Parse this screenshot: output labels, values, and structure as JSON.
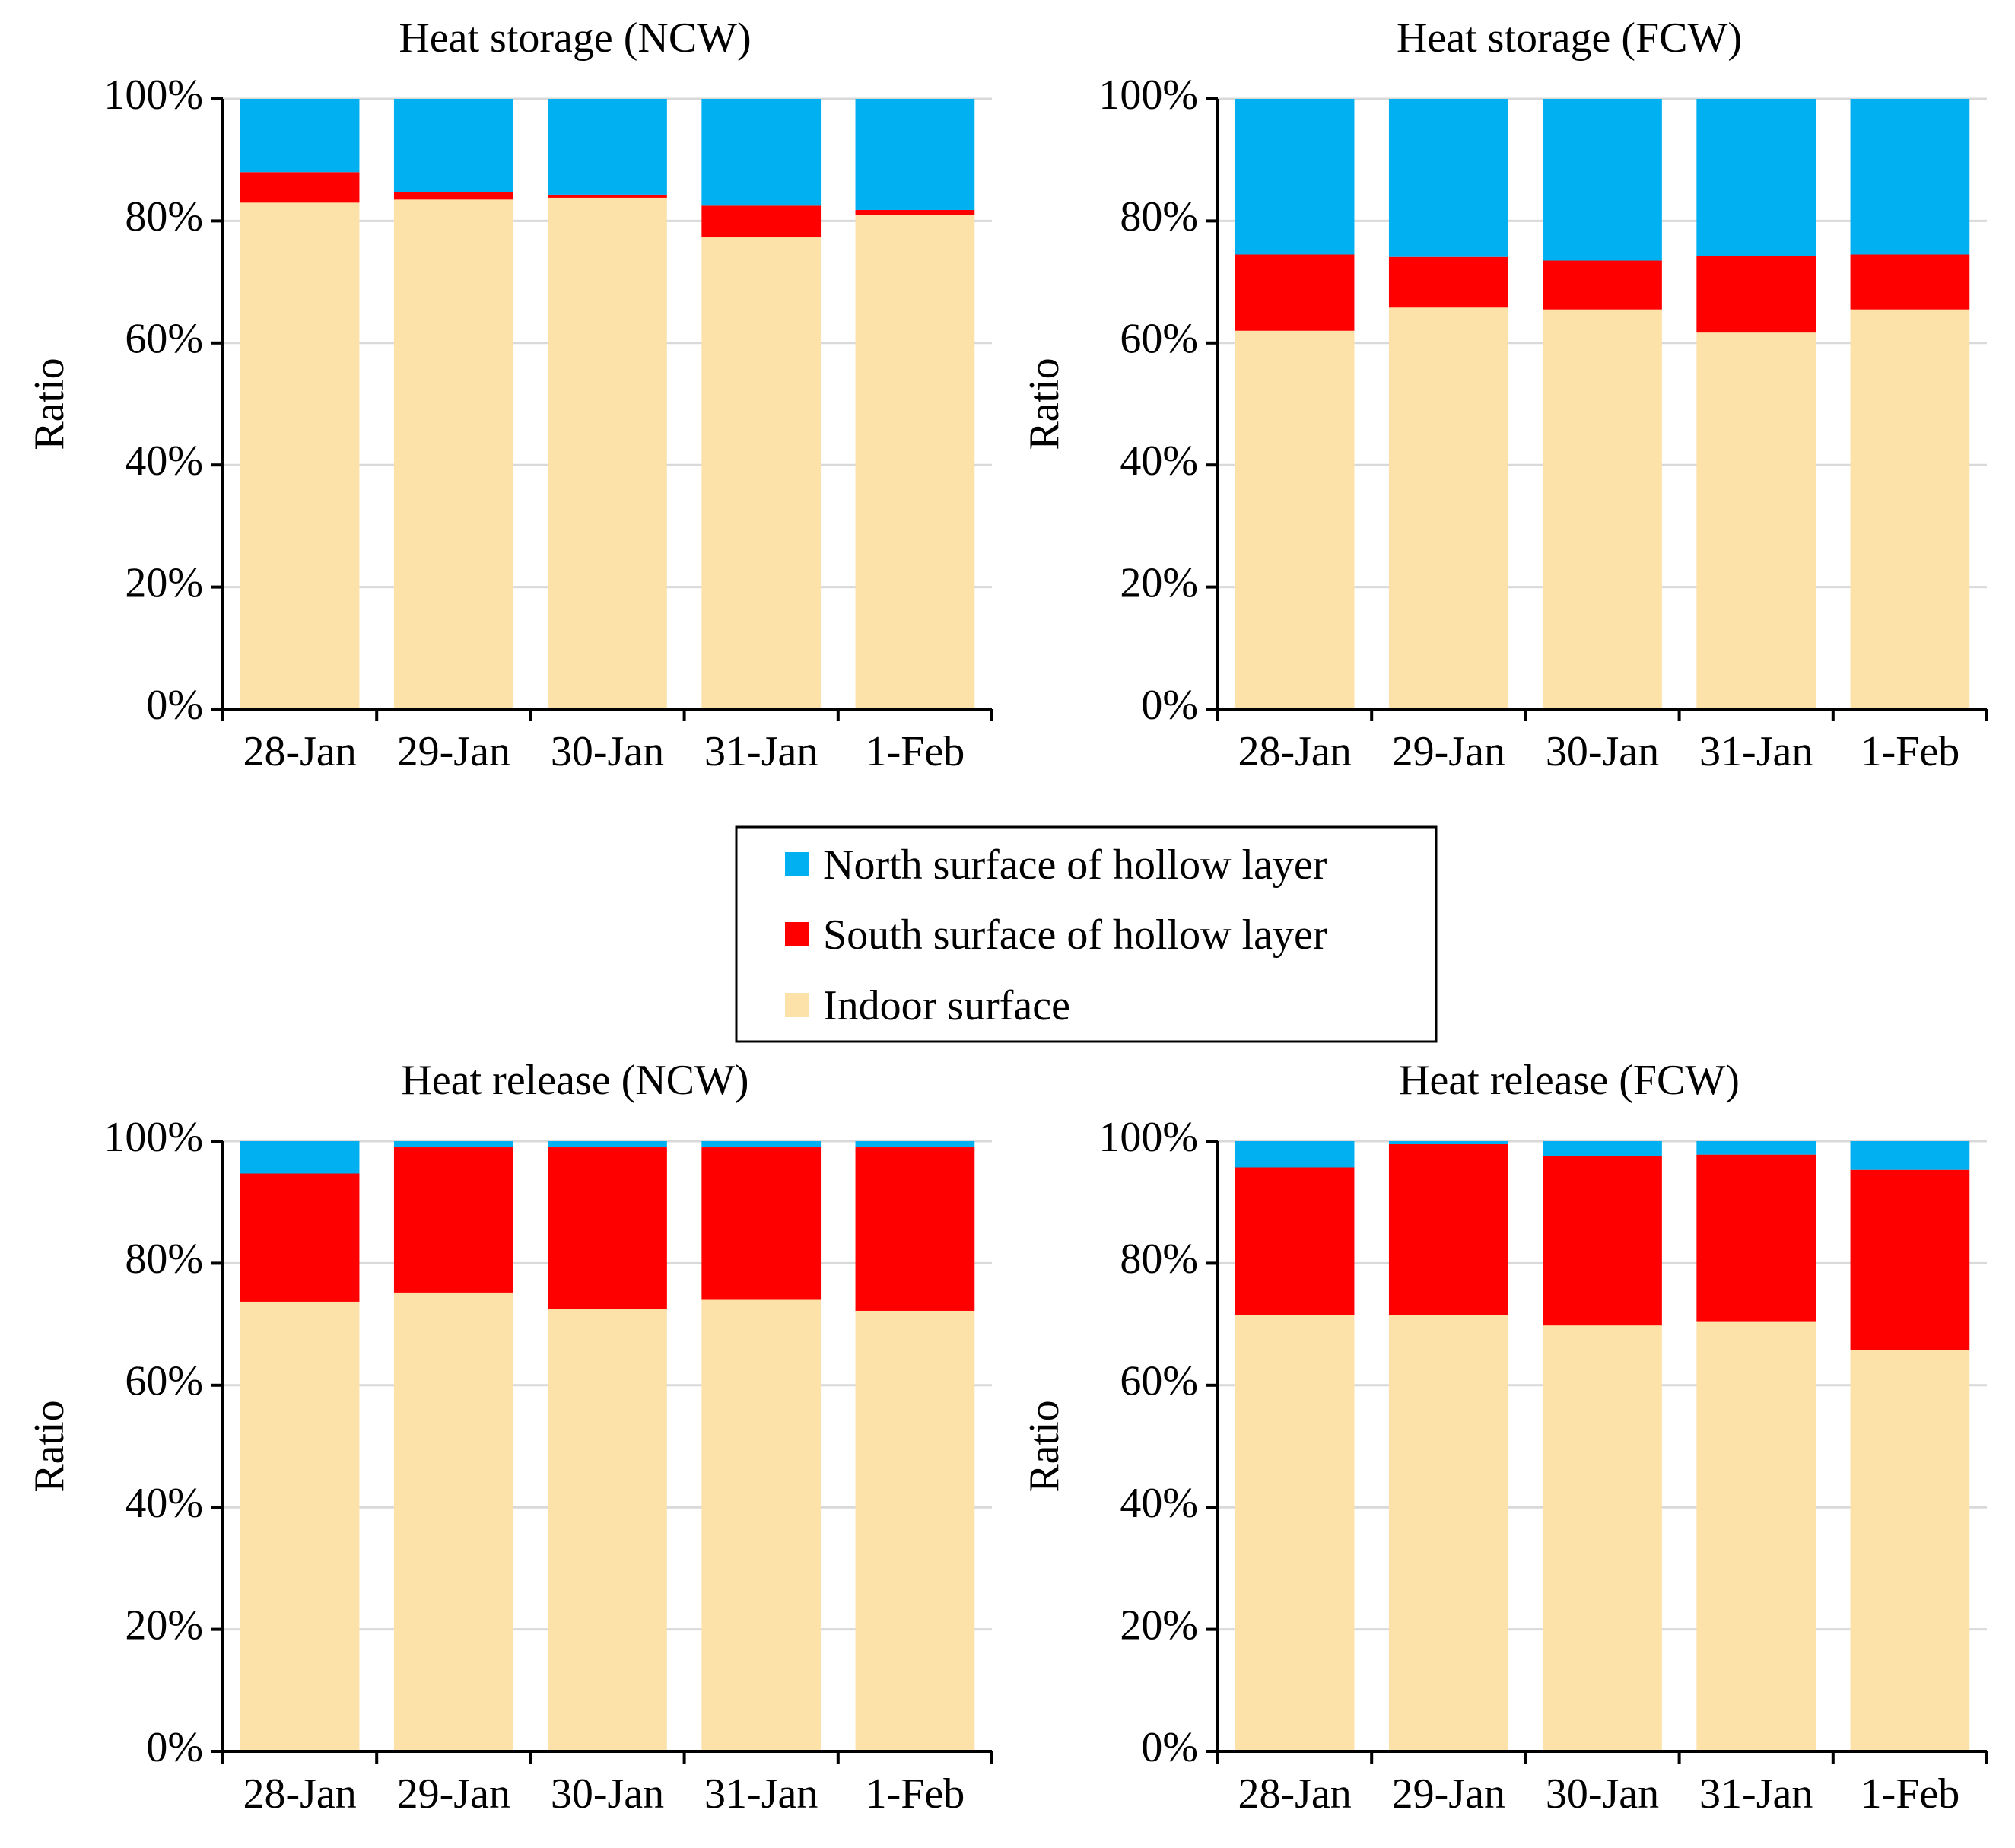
{
  "colors": {
    "indoor": "#FCE2A9",
    "south": "#FF0000",
    "north": "#00B0F0",
    "grid": "#D9D9D9",
    "axis": "#000000"
  },
  "legend": {
    "items": [
      {
        "label": "North surface of hollow layer",
        "color": "#00B0F0"
      },
      {
        "label": "South surface of hollow layer",
        "color": "#FF0000"
      },
      {
        "label": "Indoor surface",
        "color": "#FCE2A9"
      }
    ]
  },
  "chart_data": [
    {
      "type": "bar",
      "stacked": true,
      "title": "Heat storage (NCW)",
      "xlabel": "",
      "ylabel": "Ratio",
      "ylim": [
        0,
        100
      ],
      "yticks": [
        "0%",
        "20%",
        "40%",
        "60%",
        "80%",
        "100%"
      ],
      "grid": true,
      "categories": [
        "28-Jan",
        "29-Jan",
        "30-Jan",
        "31-Jan",
        "1-Feb"
      ],
      "series": [
        {
          "name": "Indoor surface",
          "values": [
            83.0,
            83.5,
            83.8,
            77.3,
            81.0
          ]
        },
        {
          "name": "South surface of hollow layer",
          "values": [
            5.0,
            1.2,
            0.5,
            5.2,
            0.8
          ]
        },
        {
          "name": "North surface of hollow layer",
          "values": [
            12.0,
            15.3,
            15.7,
            17.5,
            18.2
          ]
        }
      ]
    },
    {
      "type": "bar",
      "stacked": true,
      "title": "Heat storage (FCW)",
      "xlabel": "",
      "ylabel": "Ratio",
      "ylim": [
        0,
        100
      ],
      "yticks": [
        "0%",
        "20%",
        "40%",
        "60%",
        "80%",
        "100%"
      ],
      "grid": true,
      "categories": [
        "28-Jan",
        "29-Jan",
        "30-Jan",
        "31-Jan",
        "1-Feb"
      ],
      "series": [
        {
          "name": "Indoor surface",
          "values": [
            62.0,
            65.8,
            65.5,
            61.7,
            65.5
          ]
        },
        {
          "name": "South surface of hollow layer",
          "values": [
            12.5,
            8.3,
            8.0,
            12.5,
            9.0
          ]
        },
        {
          "name": "North surface of hollow layer",
          "values": [
            25.5,
            25.9,
            26.5,
            25.8,
            25.5
          ]
        }
      ]
    },
    {
      "type": "bar",
      "stacked": true,
      "title": "Heat release (NCW)",
      "xlabel": "",
      "ylabel": "Ratio",
      "ylim": [
        0,
        100
      ],
      "yticks": [
        "0%",
        "20%",
        "40%",
        "60%",
        "80%",
        "100%"
      ],
      "grid": true,
      "categories": [
        "28-Jan",
        "29-Jan",
        "30-Jan",
        "31-Jan",
        "1-Feb"
      ],
      "series": [
        {
          "name": "Indoor surface",
          "values": [
            73.7,
            75.2,
            72.5,
            74.0,
            72.2
          ]
        },
        {
          "name": "South surface of hollow layer",
          "values": [
            21.0,
            23.8,
            26.5,
            25.0,
            26.8
          ]
        },
        {
          "name": "North surface of hollow layer",
          "values": [
            5.3,
            1.0,
            1.0,
            1.0,
            1.0
          ]
        }
      ]
    },
    {
      "type": "bar",
      "stacked": true,
      "title": "Heat release (FCW)",
      "xlabel": "",
      "ylabel": "Ratio",
      "ylim": [
        0,
        100
      ],
      "yticks": [
        "0%",
        "20%",
        "40%",
        "60%",
        "80%",
        "100%"
      ],
      "grid": true,
      "categories": [
        "28-Jan",
        "29-Jan",
        "30-Jan",
        "31-Jan",
        "1-Feb"
      ],
      "series": [
        {
          "name": "Indoor surface",
          "values": [
            71.5,
            71.5,
            69.8,
            70.5,
            65.8
          ]
        },
        {
          "name": "South surface of hollow layer",
          "values": [
            24.2,
            28.0,
            27.8,
            27.3,
            29.5
          ]
        },
        {
          "name": "North surface of hollow layer",
          "values": [
            4.3,
            0.5,
            2.4,
            2.2,
            4.7
          ]
        }
      ]
    }
  ]
}
